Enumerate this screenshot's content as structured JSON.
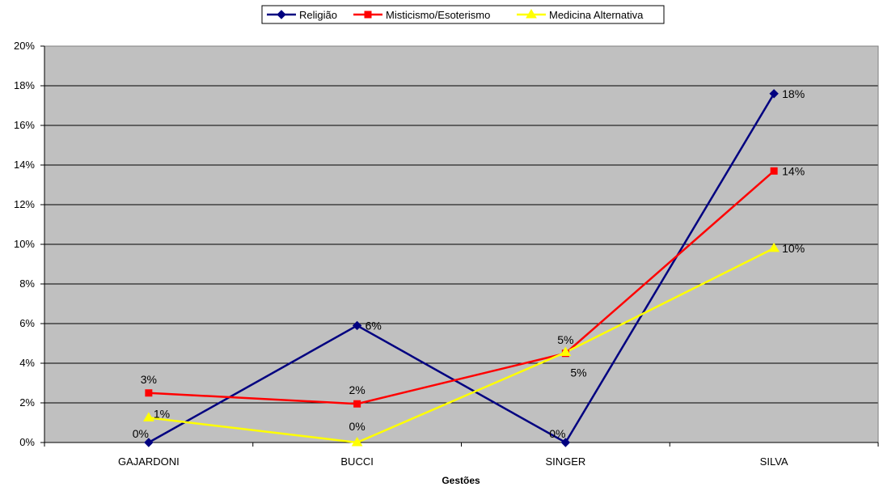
{
  "chart_data": {
    "type": "line",
    "title": "",
    "xlabel": "Gestões",
    "ylabel": "",
    "categories": [
      "GAJARDONI",
      "BUCCI",
      "SINGER",
      "SILVA"
    ],
    "ylim": [
      0,
      20
    ],
    "yticks": [
      "0%",
      "2%",
      "4%",
      "6%",
      "8%",
      "10%",
      "12%",
      "14%",
      "16%",
      "18%",
      "20%"
    ],
    "grid": true,
    "legend_position": "top-center",
    "plot_background": "#c0c0c0",
    "series": [
      {
        "name": "Religião",
        "color": "#000080",
        "marker": "diamond",
        "values": [
          0,
          5.9,
          0,
          17.6
        ],
        "labels": [
          "0%",
          "6%",
          "0%",
          "18%"
        ]
      },
      {
        "name": "Misticismo/Esoterismo",
        "color": "#ff0000",
        "marker": "square",
        "values": [
          2.5,
          1.95,
          4.5,
          13.7
        ],
        "labels": [
          "3%",
          "2%",
          "5%",
          "14%"
        ]
      },
      {
        "name": "Medicina Alternativa",
        "color": "#ffff00",
        "marker": "triangle",
        "values": [
          1.25,
          0,
          4.55,
          9.8
        ],
        "labels": [
          "1%",
          "0%",
          "5%",
          "10%"
        ]
      }
    ]
  }
}
